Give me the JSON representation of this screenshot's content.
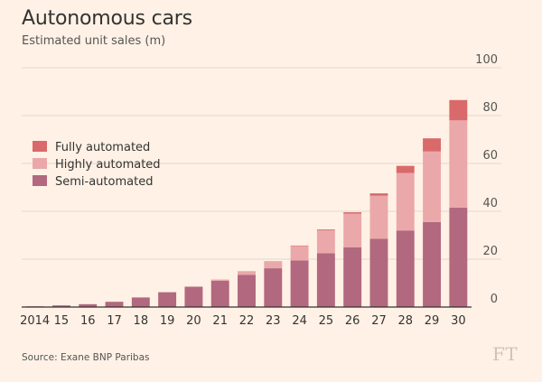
{
  "header": {
    "title": "Autonomous cars",
    "subtitle": "Estimated unit sales (m)"
  },
  "footer": {
    "source": "Source: Exane BNP Paribas",
    "logo": "FT"
  },
  "chart_data": {
    "type": "bar",
    "stacked": true,
    "title": "Autonomous cars",
    "subtitle": "Estimated unit sales (m)",
    "xlabel": "",
    "ylabel": "",
    "categories": [
      "2014",
      "15",
      "16",
      "17",
      "18",
      "19",
      "20",
      "21",
      "22",
      "23",
      "24",
      "25",
      "26",
      "27",
      "28",
      "29",
      "30"
    ],
    "ylim": [
      0,
      100
    ],
    "yticks": [
      0,
      20,
      40,
      60,
      80,
      100
    ],
    "grid": true,
    "y_axis_side": "right",
    "legend_position": "left-middle",
    "series": [
      {
        "name": "Semi-automated",
        "color": "#b2687e",
        "values": [
          0.3,
          0.7,
          1.2,
          2.2,
          4.0,
          6.2,
          8.5,
          11.0,
          13.5,
          16.2,
          19.5,
          22.5,
          25.0,
          28.5,
          32.0,
          35.5,
          41.5
        ]
      },
      {
        "name": "Highly automated",
        "color": "#eaa8aa",
        "values": [
          0,
          0,
          0,
          0,
          0,
          0,
          0,
          0.5,
          1.5,
          3.0,
          6.0,
          9.5,
          14.0,
          18.0,
          24.0,
          29.5,
          36.5
        ]
      },
      {
        "name": "Fully automated",
        "color": "#d9696a",
        "values": [
          0,
          0,
          0,
          0,
          0,
          0,
          0,
          0,
          0,
          0,
          0.2,
          0.4,
          0.6,
          1.0,
          3.0,
          5.5,
          8.5
        ]
      }
    ],
    "legend": [
      {
        "name": "Fully automated",
        "color": "#d9696a"
      },
      {
        "name": "Highly automated",
        "color": "#eaa8aa"
      },
      {
        "name": "Semi-automated",
        "color": "#b2687e"
      }
    ]
  }
}
